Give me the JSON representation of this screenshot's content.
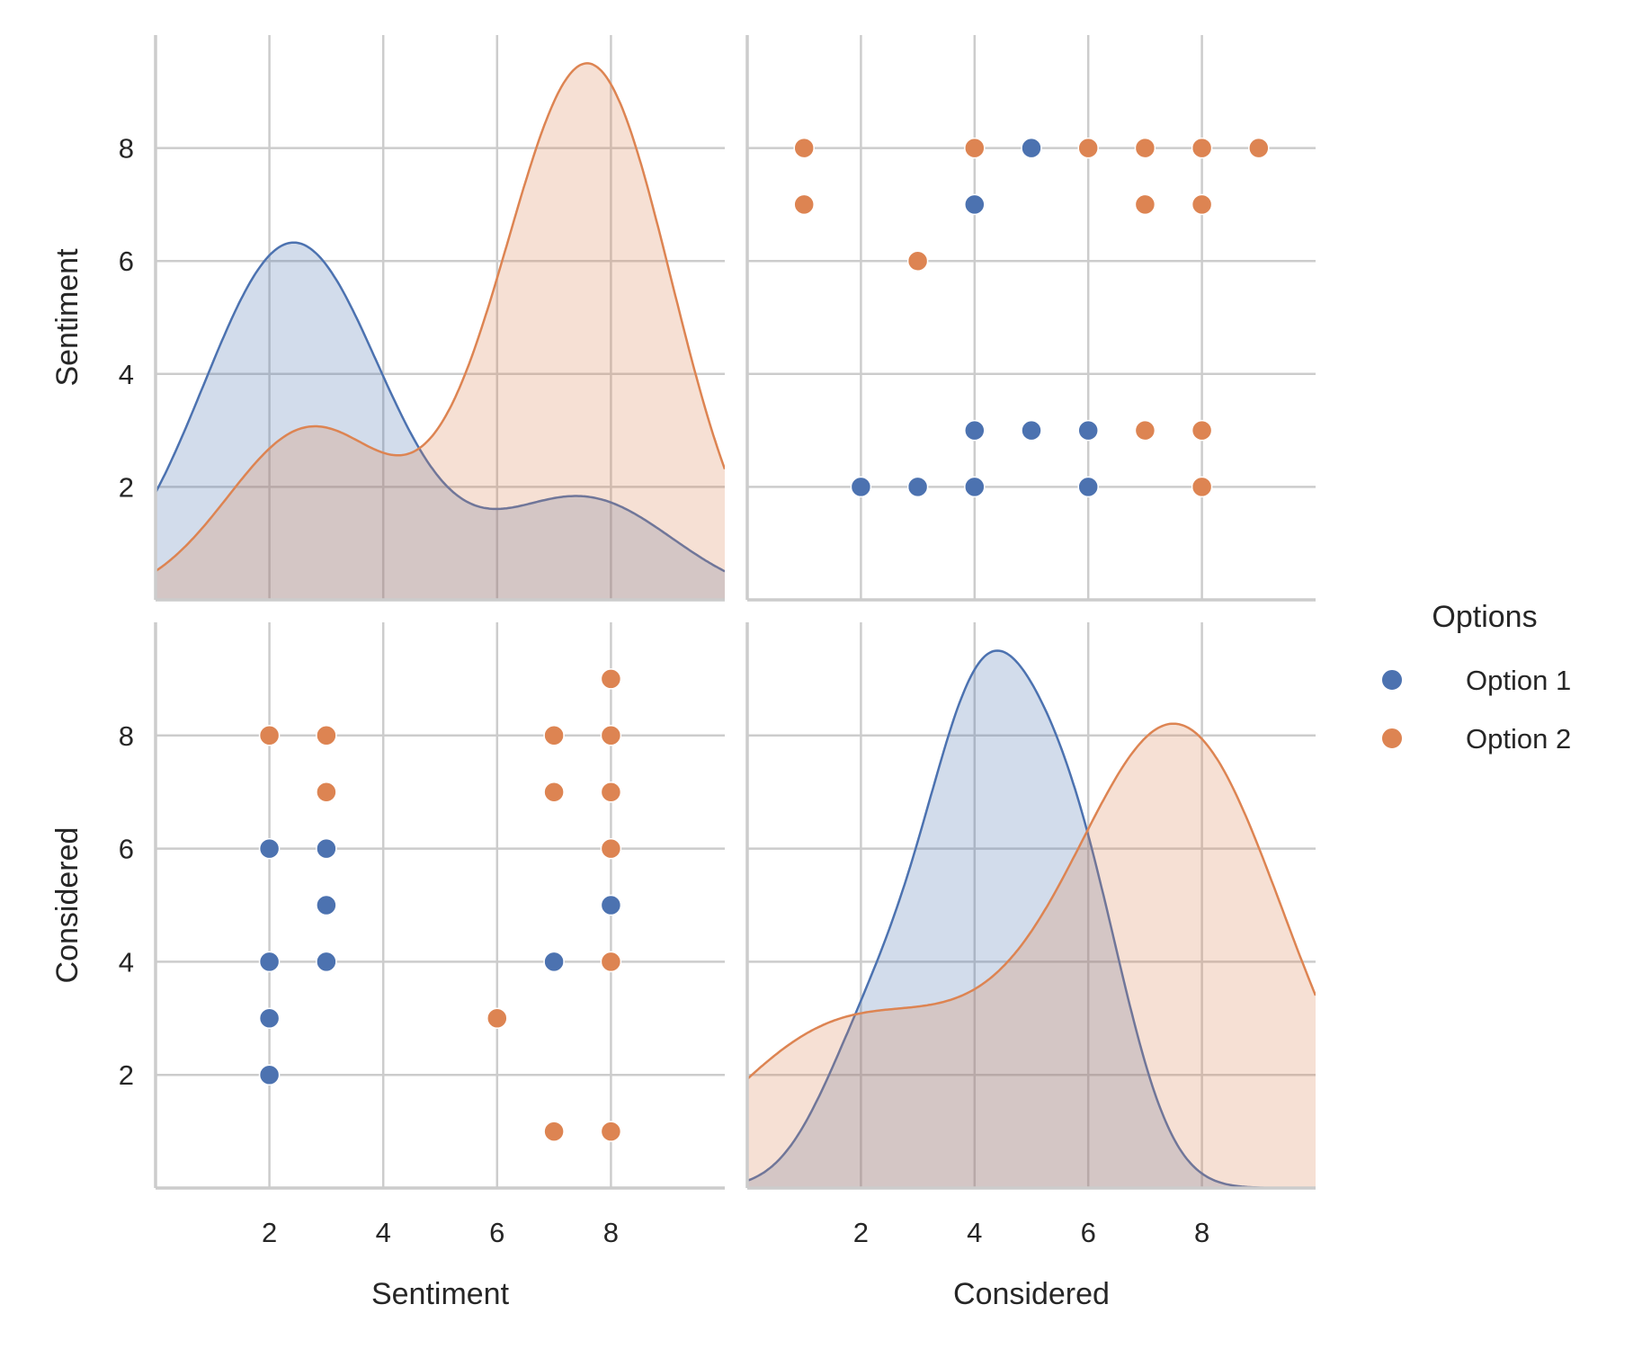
{
  "chart_data": {
    "type": "pairplot",
    "variables": [
      "Sentiment",
      "Considered"
    ],
    "hue_title": "Options",
    "legend_placement": "right",
    "grid": true,
    "xlim": [
      0,
      10
    ],
    "ylim": [
      0,
      10
    ],
    "ticks": [
      2,
      4,
      6,
      8
    ],
    "tick_labels": [
      "2",
      "4",
      "6",
      "8"
    ],
    "diagonal": "kde",
    "offdiagonal": "scatter",
    "series": [
      {
        "name": "Option 1",
        "color": "#4c72b0",
        "points": [
          {
            "Sentiment": 8,
            "Considered": 5
          },
          {
            "Sentiment": 7,
            "Considered": 4
          },
          {
            "Sentiment": 3,
            "Considered": 4
          },
          {
            "Sentiment": 3,
            "Considered": 5
          },
          {
            "Sentiment": 3,
            "Considered": 6
          },
          {
            "Sentiment": 2,
            "Considered": 2
          },
          {
            "Sentiment": 2,
            "Considered": 3
          },
          {
            "Sentiment": 2,
            "Considered": 4
          },
          {
            "Sentiment": 2,
            "Considered": 6
          }
        ]
      },
      {
        "name": "Option 2",
        "color": "#dd8452",
        "points": [
          {
            "Sentiment": 8,
            "Considered": 1
          },
          {
            "Sentiment": 7,
            "Considered": 1
          },
          {
            "Sentiment": 6,
            "Considered": 3
          },
          {
            "Sentiment": 8,
            "Considered": 4
          },
          {
            "Sentiment": 8,
            "Considered": 6
          },
          {
            "Sentiment": 8,
            "Considered": 7
          },
          {
            "Sentiment": 8,
            "Considered": 8
          },
          {
            "Sentiment": 8,
            "Considered": 9
          },
          {
            "Sentiment": 7,
            "Considered": 7
          },
          {
            "Sentiment": 7,
            "Considered": 8
          },
          {
            "Sentiment": 3,
            "Considered": 7
          },
          {
            "Sentiment": 3,
            "Considered": 8
          },
          {
            "Sentiment": 2,
            "Considered": 8
          }
        ]
      }
    ]
  }
}
